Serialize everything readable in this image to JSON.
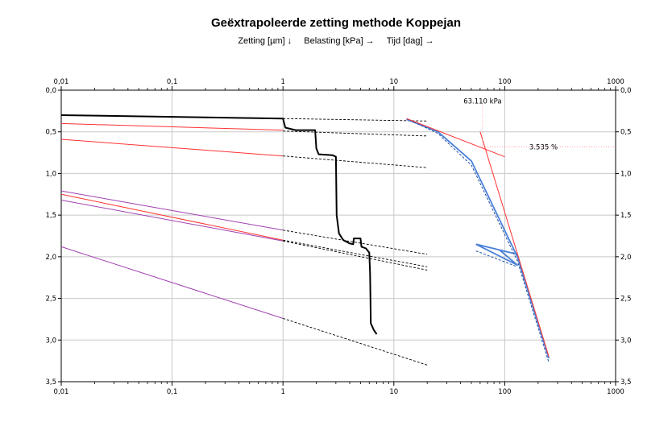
{
  "chart_data": {
    "type": "line",
    "title": "Geëxtrapoleerde zetting methode Koppejan",
    "legend": [
      "Zetting [µm] ↓",
      "Belasting [kPa] →",
      "Tijd [dag] →"
    ],
    "x_scale": "log",
    "xlim": [
      0.01,
      1000
    ],
    "x_ticks": [
      0.01,
      0.1,
      1,
      10,
      100,
      1000
    ],
    "x_tick_labels": [
      "0,01",
      "0,1",
      "1",
      "10",
      "100",
      "1000"
    ],
    "ylim": [
      0,
      3.5
    ],
    "y_inverted": true,
    "y_ticks": [
      0,
      0.5,
      1,
      1.5,
      2,
      2.5,
      3,
      3.5
    ],
    "y_tick_labels": [
      "0,0",
      "0,5",
      "1,0",
      "1,5",
      "2,0",
      "2,5",
      "3,0",
      "3,5"
    ],
    "grid": true,
    "annotations": [
      {
        "text": "63.110 kPa",
        "x": 63.11,
        "y": 0.13
      },
      {
        "text": "3.535 %",
        "x": 300,
        "y": 0.68
      }
    ],
    "series": [
      {
        "kind": "settlement",
        "color": "#000000",
        "points": [
          [
            0.01,
            0.3
          ],
          [
            1,
            0.34
          ],
          [
            1.05,
            0.45
          ],
          [
            1.3,
            0.48
          ],
          [
            1.95,
            0.48
          ],
          [
            2.0,
            0.7
          ],
          [
            2.1,
            0.77
          ],
          [
            2.8,
            0.78
          ],
          [
            3.0,
            0.8
          ],
          [
            3.05,
            1.5
          ],
          [
            3.2,
            1.72
          ],
          [
            3.5,
            1.8
          ],
          [
            4.0,
            1.84
          ],
          [
            4.3,
            1.85
          ],
          [
            4.35,
            1.78
          ],
          [
            5.0,
            1.78
          ],
          [
            5.1,
            1.88
          ],
          [
            5.6,
            1.9
          ],
          [
            6.0,
            1.95
          ],
          [
            6.1,
            2.2
          ],
          [
            6.2,
            2.8
          ],
          [
            6.6,
            2.88
          ],
          [
            7.0,
            2.93
          ]
        ]
      },
      {
        "kind": "koppejan-fit",
        "color": "#ff3333",
        "points": [
          [
            0.01,
            0.4
          ],
          [
            1,
            0.48
          ]
        ]
      },
      {
        "kind": "koppejan-fit",
        "color": "#ff3333",
        "points": [
          [
            0.01,
            0.59
          ],
          [
            1,
            0.79
          ]
        ]
      },
      {
        "kind": "koppejan-fit",
        "color": "#ff3333",
        "points": [
          [
            0.01,
            1.25
          ],
          [
            1,
            1.8
          ]
        ]
      },
      {
        "kind": "koppejan-fit",
        "color": "#a040b0",
        "points": [
          [
            0.01,
            1.21
          ],
          [
            1,
            1.68
          ]
        ]
      },
      {
        "kind": "koppejan-fit",
        "color": "#a040b0",
        "points": [
          [
            0.01,
            1.32
          ],
          [
            1,
            1.81
          ]
        ]
      },
      {
        "kind": "koppejan-fit",
        "color": "#a040b0",
        "points": [
          [
            0.01,
            1.88
          ],
          [
            1,
            2.74
          ]
        ]
      },
      {
        "kind": "extrapolation",
        "color": "#000000",
        "dashed": true,
        "points": [
          [
            1,
            0.34
          ],
          [
            20,
            0.37
          ]
        ]
      },
      {
        "kind": "extrapolation",
        "color": "#000000",
        "dashed": true,
        "points": [
          [
            1,
            0.49
          ],
          [
            20,
            0.55
          ]
        ]
      },
      {
        "kind": "extrapolation",
        "color": "#000000",
        "dashed": true,
        "points": [
          [
            1,
            0.79
          ],
          [
            20,
            0.93
          ]
        ]
      },
      {
        "kind": "extrapolation",
        "color": "#000000",
        "dashed": true,
        "points": [
          [
            1,
            1.68
          ],
          [
            20,
            1.97
          ]
        ]
      },
      {
        "kind": "extrapolation",
        "color": "#000000",
        "dashed": true,
        "points": [
          [
            1,
            1.8
          ],
          [
            20,
            2.12
          ]
        ]
      },
      {
        "kind": "extrapolation",
        "color": "#000000",
        "dashed": true,
        "points": [
          [
            1,
            1.81
          ],
          [
            20,
            2.16
          ]
        ]
      },
      {
        "kind": "extrapolation",
        "color": "#000000",
        "dashed": true,
        "points": [
          [
            1,
            2.74
          ],
          [
            20,
            3.3
          ]
        ]
      },
      {
        "kind": "load",
        "color": "#4a80d8",
        "points": [
          [
            13,
            0.35
          ],
          [
            25,
            0.5
          ],
          [
            50,
            0.85
          ],
          [
            130,
            2.0
          ],
          [
            250,
            3.22
          ]
        ]
      },
      {
        "kind": "load",
        "color": "#4a80d8",
        "points": [
          [
            55,
            1.85
          ],
          [
            130,
            1.97
          ],
          [
            90,
            1.92
          ],
          [
            130,
            2.1
          ],
          [
            55,
            1.85
          ]
        ]
      },
      {
        "kind": "load-dashed",
        "color": "#1e4fa8",
        "dashed": true,
        "points": [
          [
            13,
            0.34
          ],
          [
            25,
            0.52
          ],
          [
            50,
            0.9
          ],
          [
            130,
            2.05
          ],
          [
            250,
            3.27
          ]
        ]
      },
      {
        "kind": "load-dashed",
        "color": "#1e4fa8",
        "dashed": true,
        "points": [
          [
            55,
            1.93
          ],
          [
            130,
            2.12
          ]
        ]
      },
      {
        "kind": "tangent",
        "color": "#ff3333",
        "points": [
          [
            13,
            0.34
          ],
          [
            100,
            0.8
          ]
        ]
      },
      {
        "kind": "tangent",
        "color": "#ff3333",
        "points": [
          [
            60,
            0.5
          ],
          [
            250,
            3.2
          ]
        ]
      },
      {
        "kind": "marker",
        "color": "#ff8888",
        "dotted": true,
        "points": [
          [
            63.11,
            0.13
          ],
          [
            63.11,
            0.7
          ]
        ]
      },
      {
        "kind": "marker",
        "color": "#ff8888",
        "dotted": true,
        "points": [
          [
            63.11,
            0.68
          ],
          [
            1000,
            0.68
          ]
        ]
      }
    ]
  }
}
